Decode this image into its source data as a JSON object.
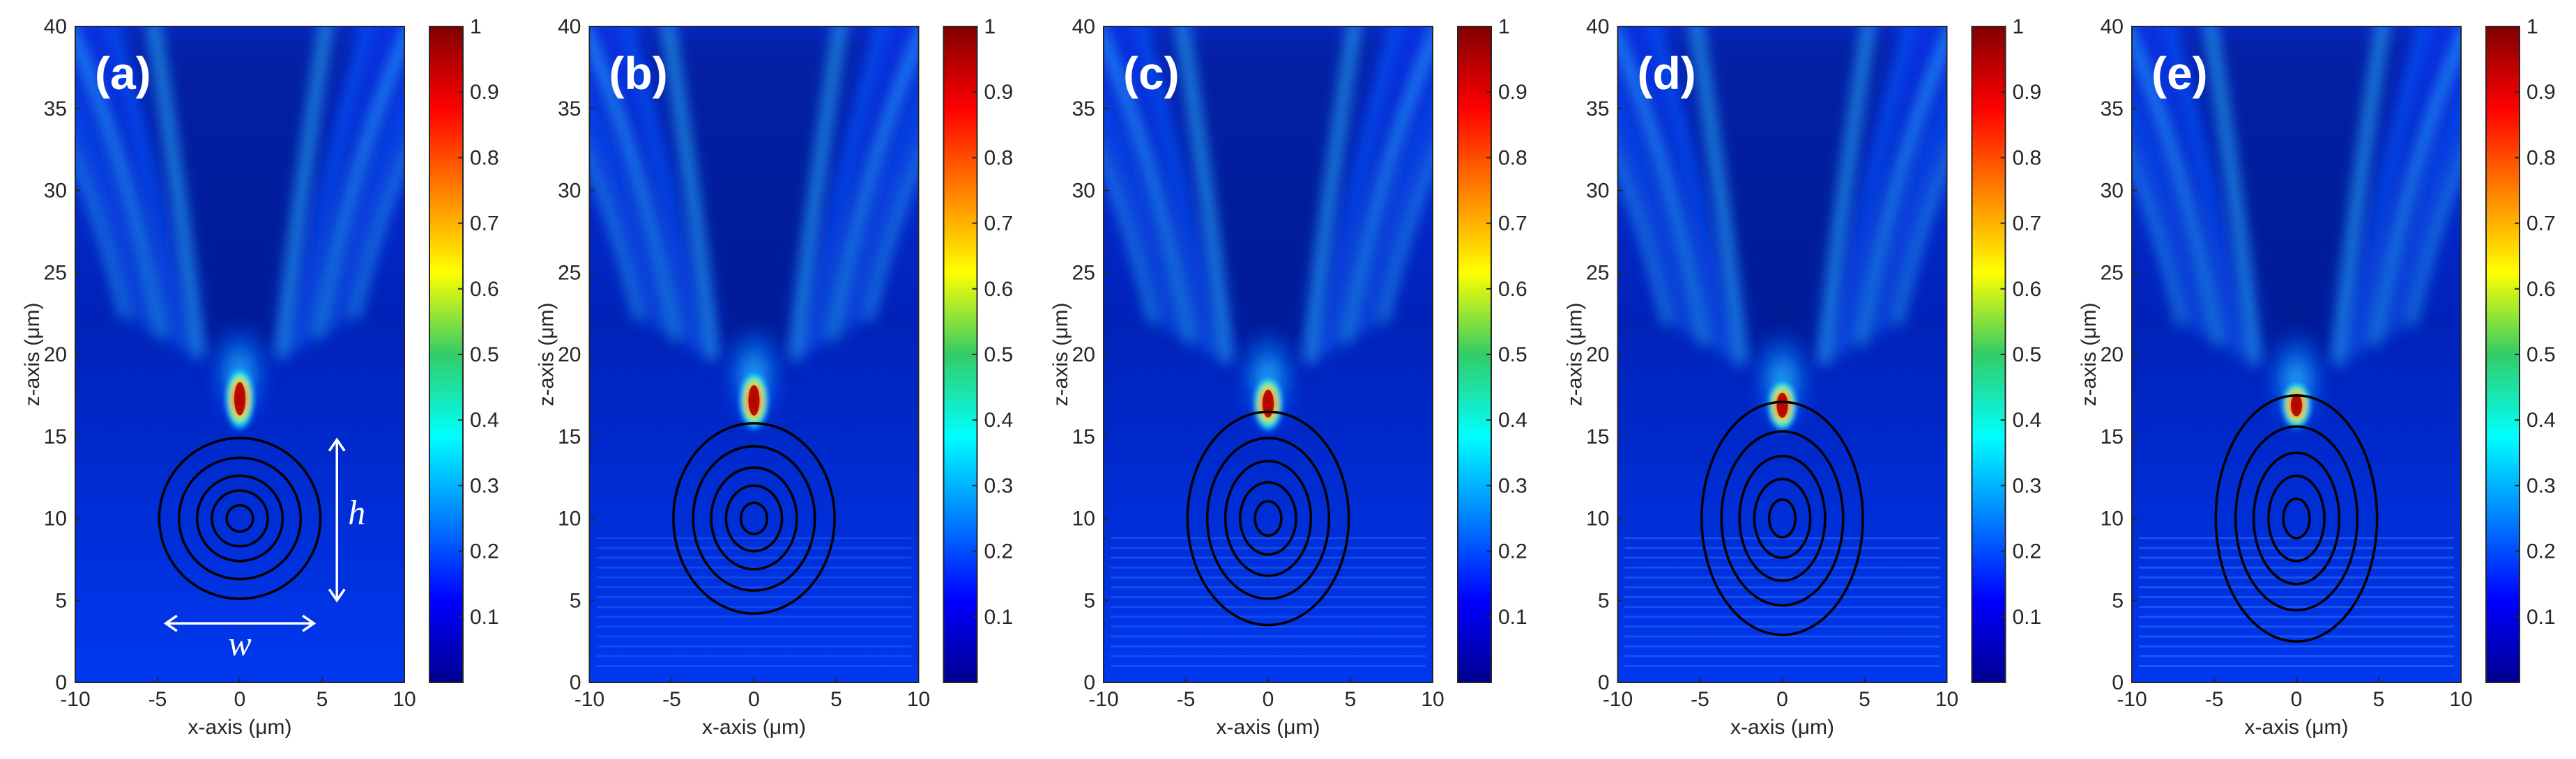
{
  "chart_data": {
    "type": "heatmap",
    "panels": [
      "(a)",
      "(b)",
      "(c)",
      "(d)",
      "(e)"
    ],
    "xlabel": "x-axis (μm)",
    "ylabel": "z-axis (μm)",
    "xlim": [
      -10,
      10
    ],
    "ylim": [
      0,
      40
    ],
    "xticks": [
      -10,
      -5,
      0,
      5,
      10
    ],
    "yticks": [
      0,
      5,
      10,
      15,
      20,
      25,
      30,
      35,
      40
    ],
    "colorbar": {
      "colormap": "jet",
      "range": [
        0,
        1
      ],
      "ticks": [
        0.1,
        0.2,
        0.3,
        0.4,
        0.5,
        0.6,
        0.7,
        0.8,
        0.9,
        1
      ],
      "tick_labels": [
        "0.1",
        "0.2",
        "0.3",
        "0.4",
        "0.5",
        "0.6",
        "0.7",
        "0.8",
        "0.9",
        "1"
      ]
    },
    "structure_center": [
      0,
      10
    ],
    "contour_radii_x": [
      [
        4.9,
        3.7,
        2.6,
        1.7,
        0.8
      ],
      [
        4.9,
        3.7,
        2.6,
        1.7,
        0.8
      ],
      [
        4.9,
        3.7,
        2.6,
        1.7,
        0.8
      ],
      [
        4.9,
        3.7,
        2.6,
        1.7,
        0.8
      ],
      [
        4.9,
        3.7,
        2.6,
        1.7,
        0.8
      ]
    ],
    "contour_radii_z": [
      [
        4.9,
        3.7,
        2.6,
        1.7,
        0.8
      ],
      [
        5.8,
        4.4,
        3.1,
        2.0,
        0.95
      ],
      [
        6.5,
        4.9,
        3.5,
        2.2,
        1.05
      ],
      [
        7.1,
        5.3,
        3.8,
        2.4,
        1.15
      ],
      [
        7.5,
        5.6,
        4.0,
        2.6,
        1.2
      ]
    ],
    "focus_points": [
      {
        "x": 0,
        "z": 17.3,
        "peak": 1
      },
      {
        "x": 0,
        "z": 17.2,
        "peak": 1
      },
      {
        "x": 0,
        "z": 17.0,
        "peak": 1
      },
      {
        "x": 0,
        "z": 16.9,
        "peak": 1
      },
      {
        "x": 0,
        "z": 16.9,
        "peak": 1
      }
    ],
    "annotations": {
      "height_label": "h",
      "width_label": "w",
      "height_arrow_z": [
        5,
        14.8
      ],
      "width_arrow_x": [
        -4.5,
        4.5
      ]
    }
  }
}
